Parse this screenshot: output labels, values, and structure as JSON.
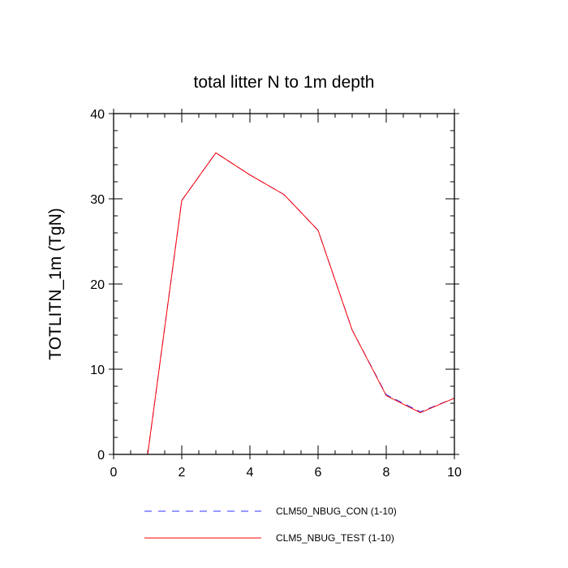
{
  "chart_data": {
    "type": "line",
    "title": "total litter N to 1m depth",
    "xlabel": "",
    "ylabel": "TOTLITN_1m  (TgN)",
    "xlim": [
      0,
      10
    ],
    "ylim": [
      0,
      40
    ],
    "xticks": [
      0,
      2,
      4,
      6,
      8,
      10
    ],
    "yticks": [
      0,
      10,
      20,
      30,
      40
    ],
    "grid": false,
    "legend_position": "bottom",
    "x": [
      1,
      2,
      3,
      4,
      5,
      6,
      7,
      8,
      9,
      10
    ],
    "series": [
      {
        "name": "CLM50_NBUG_CON (1-10)",
        "color": "#3333ff",
        "style": "dashed",
        "values": [
          0,
          29.8,
          35.4,
          32.8,
          30.5,
          26.3,
          14.6,
          7.0,
          5.0,
          6.6
        ]
      },
      {
        "name": "CLM5_NBUG_TEST (1-10)",
        "color": "#ff0000",
        "style": "solid",
        "values": [
          0,
          29.8,
          35.4,
          32.8,
          30.5,
          26.3,
          14.6,
          6.9,
          4.9,
          6.6
        ]
      }
    ]
  }
}
